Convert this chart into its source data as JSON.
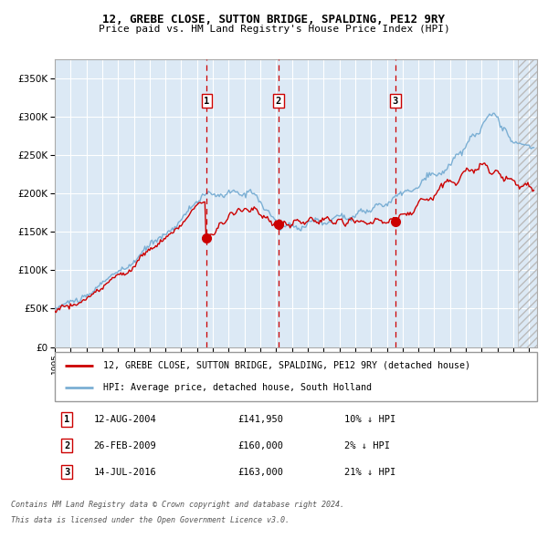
{
  "title": "12, GREBE CLOSE, SUTTON BRIDGE, SPALDING, PE12 9RY",
  "subtitle": "Price paid vs. HM Land Registry's House Price Index (HPI)",
  "legend_label_red": "12, GREBE CLOSE, SUTTON BRIDGE, SPALDING, PE12 9RY (detached house)",
  "legend_label_blue": "HPI: Average price, detached house, South Holland",
  "footer_line1": "Contains HM Land Registry data © Crown copyright and database right 2024.",
  "footer_line2": "This data is licensed under the Open Government Licence v3.0.",
  "transactions": [
    {
      "label": "1",
      "date": "12-AUG-2004",
      "price": "£141,950",
      "hpi": "10% ↓ HPI",
      "x": 2004.61
    },
    {
      "label": "2",
      "date": "26-FEB-2009",
      "price": "£160,000",
      "hpi": "2% ↓ HPI",
      "x": 2009.15
    },
    {
      "label": "3",
      "date": "14-JUL-2016",
      "price": "£163,000",
      "hpi": "21% ↓ HPI",
      "x": 2016.54
    }
  ],
  "transaction_prices": [
    141950,
    160000,
    163000
  ],
  "ylim": [
    0,
    375000
  ],
  "yticks": [
    0,
    50000,
    100000,
    150000,
    200000,
    250000,
    300000,
    350000
  ],
  "xlim_start": 1995,
  "xlim_end": 2025.5,
  "background_color": "#ffffff",
  "plot_bg_color": "#dce9f5",
  "grid_color": "#ffffff",
  "red_line_color": "#cc0000",
  "blue_line_color": "#7bafd4",
  "vline_color": "#cc0000",
  "marker_color": "#cc0000",
  "hatch_start": 2024.3
}
